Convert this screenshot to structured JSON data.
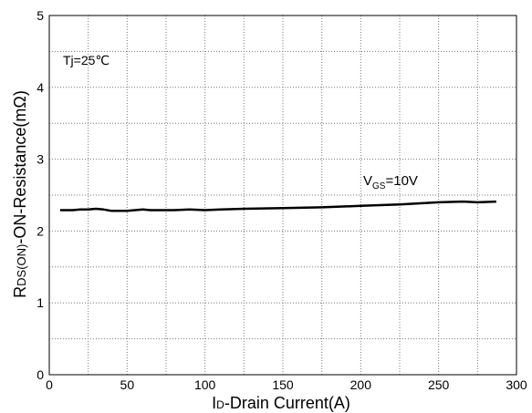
{
  "chart_data": {
    "type": "line",
    "xlabel_main": "I",
    "xlabel_sub": "D",
    "xlabel_rest": "-Drain Current(A)",
    "ylabel_main": "R",
    "ylabel_sub": "DS(ON)",
    "ylabel_rest": "-ON-Resistance(mΩ)",
    "xlim": [
      0,
      300
    ],
    "ylim": [
      0,
      5
    ],
    "xticks": [
      0,
      50,
      100,
      150,
      200,
      250,
      300
    ],
    "yticks": [
      0,
      1,
      2,
      3,
      4,
      5
    ],
    "x_minor_step": 25,
    "y_minor_step": 0.5,
    "grid": true,
    "annotations": {
      "temp": "Tj=25℃",
      "vgs_main": "V",
      "vgs_sub": "GS",
      "vgs_rest": "=10V"
    },
    "series": [
      {
        "x": [
          7,
          15,
          20,
          25,
          30,
          35,
          40,
          45,
          50,
          55,
          60,
          65,
          70,
          80,
          90,
          100,
          110,
          125,
          150,
          175,
          200,
          225,
          250,
          265,
          275,
          287
        ],
        "y": [
          2.29,
          2.29,
          2.3,
          2.3,
          2.31,
          2.3,
          2.28,
          2.28,
          2.28,
          2.29,
          2.3,
          2.29,
          2.29,
          2.29,
          2.3,
          2.29,
          2.3,
          2.31,
          2.32,
          2.33,
          2.35,
          2.37,
          2.4,
          2.41,
          2.4,
          2.41
        ]
      }
    ]
  }
}
